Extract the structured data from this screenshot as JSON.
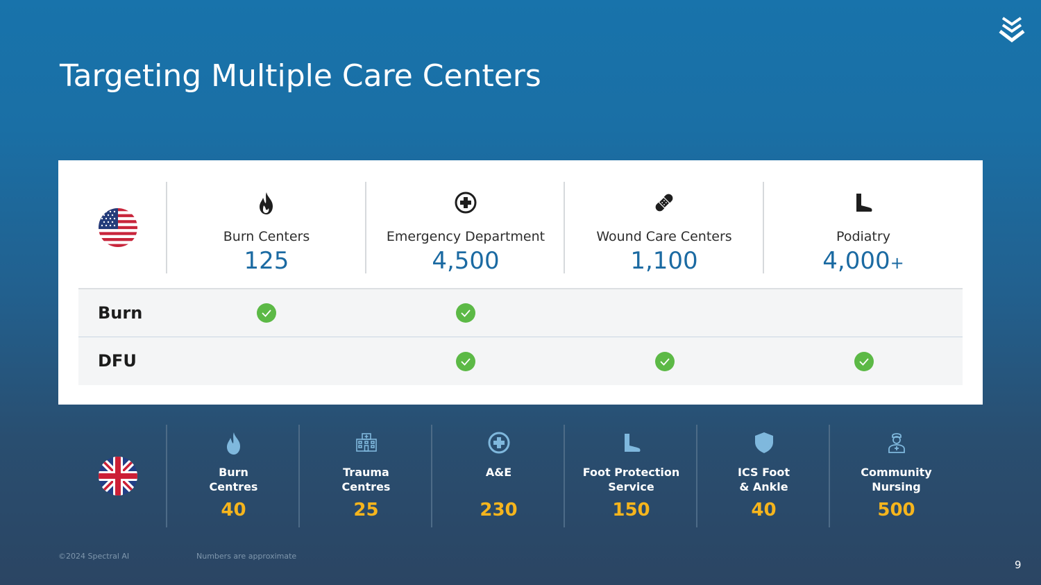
{
  "slide": {
    "title": "Targeting Multiple Care Centers",
    "page_number": "9"
  },
  "us_section": {
    "country_flag_icon": "us-flag-icon",
    "columns": [
      {
        "label": "Burn Centers",
        "value": "125",
        "suffix": "",
        "icon": "flame-icon"
      },
      {
        "label": "Emergency Department",
        "value": "4,500",
        "suffix": "",
        "icon": "medical-cross-icon"
      },
      {
        "label": "Wound Care Centers",
        "value": "1,100",
        "suffix": "",
        "icon": "bandage-icon"
      },
      {
        "label": "Podiatry",
        "value": "4,000",
        "suffix": "+",
        "icon": "foot-icon"
      }
    ],
    "rows": [
      {
        "label": "Burn",
        "checks": [
          true,
          true,
          false,
          false
        ]
      },
      {
        "label": "DFU",
        "checks": [
          false,
          true,
          true,
          true
        ]
      }
    ]
  },
  "uk_section": {
    "country_flag_icon": "uk-flag-icon",
    "columns": [
      {
        "line1": "Burn",
        "line2": "Centres",
        "value": "40",
        "icon": "flame-icon"
      },
      {
        "line1": "Trauma",
        "line2": "Centres",
        "value": "25",
        "icon": "hospital-building-icon"
      },
      {
        "line1": "A&E",
        "line2": "",
        "value": "230",
        "icon": "medical-cross-icon"
      },
      {
        "line1": "Foot Protection",
        "line2": "Service",
        "value": "150",
        "icon": "foot-icon"
      },
      {
        "line1": "ICS Foot",
        "line2": "& Ankle",
        "value": "40",
        "icon": "shield-icon"
      },
      {
        "line1": "Community",
        "line2": "Nursing",
        "value": "500",
        "icon": "nurse-icon"
      }
    ]
  },
  "footer": {
    "copyright": "©2024 Spectral AI",
    "note": "Numbers are approximate"
  },
  "colors": {
    "us_number": "#1b6aa2",
    "uk_number": "#f6b51d",
    "check": "#5cb946",
    "uk_icon": "#7fb8dd"
  }
}
